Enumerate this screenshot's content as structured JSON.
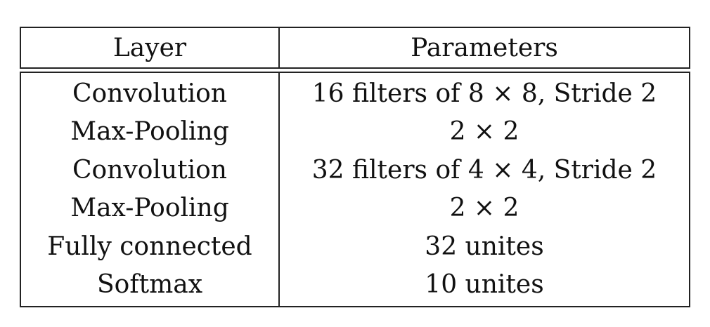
{
  "table": {
    "headers": [
      "Layer",
      "Parameters"
    ],
    "rows": [
      [
        "Convolution",
        "16 filters of 8 × 8, Stride 2"
      ],
      [
        "Max-Pooling",
        "2 × 2"
      ],
      [
        "Convolution",
        "32 filters of 4 × 4, Stride 2"
      ],
      [
        "Max-Pooling",
        "2 × 2"
      ],
      [
        "Fully connected",
        "32 unites"
      ],
      [
        "Softmax",
        "10 unites"
      ]
    ]
  }
}
